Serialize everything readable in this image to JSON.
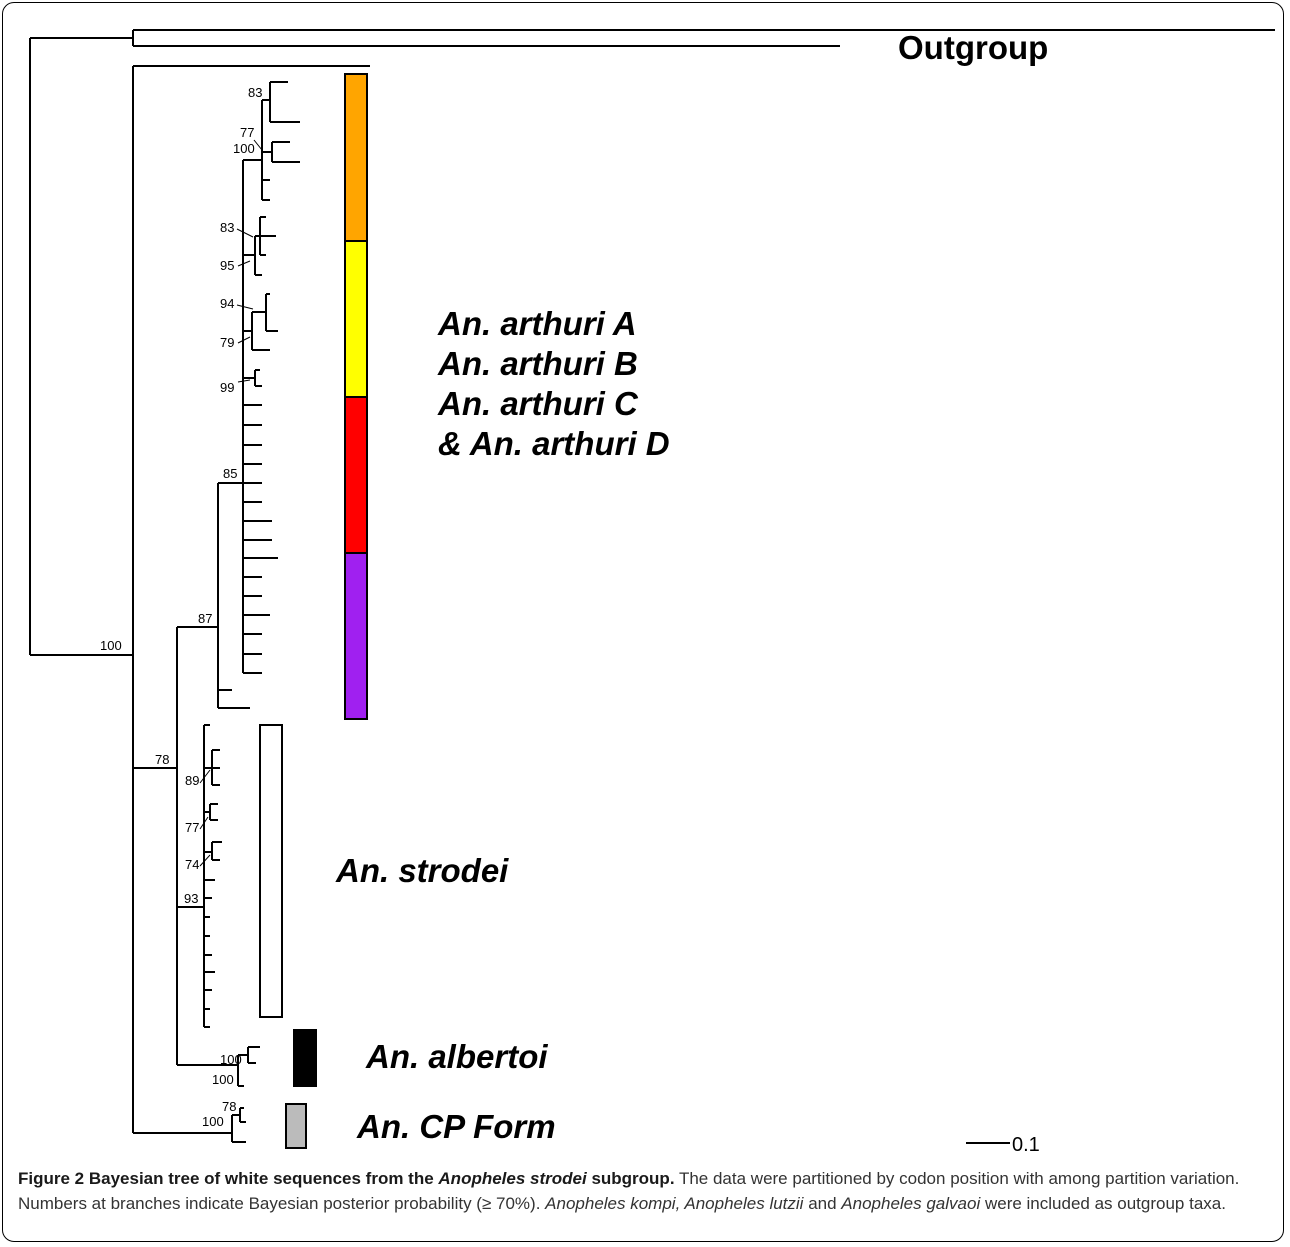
{
  "outgroup_label": "Outgroup",
  "clades": {
    "arthuri": [
      "An. arthuri A",
      "An. arthuri B",
      "An. arthuri C",
      "& An. arthuri D"
    ],
    "strodei": "An. strodei",
    "albertoi": "An. albertoi",
    "cp_form": "An. CP Form"
  },
  "support_values": {
    "root_ingroup": "100",
    "node_78": "78",
    "node_87": "87",
    "node_85": "85",
    "node_93": "93",
    "arthuri_a_83": "83",
    "arthuri_a_77": "77",
    "arthuri_a_100": "100",
    "arthuri_b_83": "83",
    "arthuri_b_95": "95",
    "arthuri_c_94": "94",
    "arthuri_c_79": "79",
    "arthuri_d_99": "99",
    "strodei_89": "89",
    "strodei_77": "77",
    "strodei_74": "74",
    "albertoi_100a": "100",
    "albertoi_100b": "100",
    "cp_78": "78",
    "cp_100": "100"
  },
  "scale_bar": {
    "label": "0.1",
    "length": 0.1
  },
  "colors": {
    "arthuri_a": "#ffa500",
    "arthuri_b": "#ffff00",
    "arthuri_c": "#ff0000",
    "arthuri_d": "#a020f0",
    "strodei": "#ffffff",
    "albertoi": "#000000",
    "cp_form": "#bbbbbb"
  },
  "caption": {
    "title_a": "Figure 2 Bayesian tree of white sequences from the ",
    "title_species": "Anopheles strodei",
    "title_b": " subgroup.",
    "text_a": " The data were partitioned by codon position with among partition variation. Numbers at branches indicate Bayesian posterior probability (≥ 70%). ",
    "outgroup_taxa": "Anopheles kompi, Anopheles lutzii",
    "text_and": " and ",
    "outgroup_taxa_2": "Anopheles galvaoi",
    "text_b": " were included as outgroup taxa."
  }
}
